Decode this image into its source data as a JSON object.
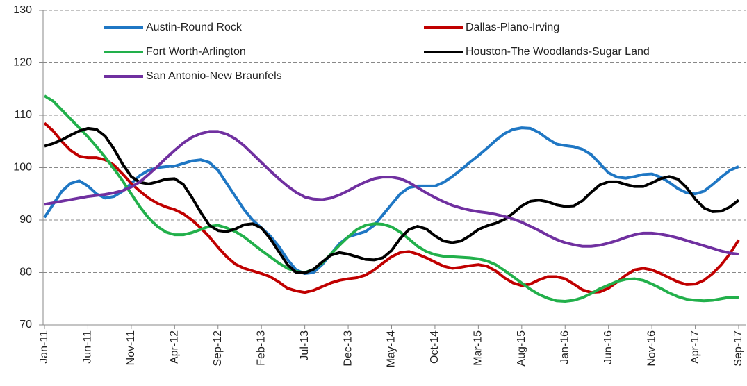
{
  "chart_data": {
    "type": "line",
    "categories": [
      "Jan-11",
      null,
      null,
      null,
      null,
      "Jun-11",
      null,
      null,
      null,
      null,
      "Nov-11",
      null,
      null,
      null,
      null,
      "Apr-12",
      null,
      null,
      null,
      null,
      "Sep-12",
      null,
      null,
      null,
      null,
      "Feb-13",
      null,
      null,
      null,
      null,
      "Jul-13",
      null,
      null,
      null,
      null,
      "Dec-13",
      null,
      null,
      null,
      null,
      "May-14",
      null,
      null,
      null,
      null,
      "Oct-14",
      null,
      null,
      null,
      null,
      "Mar-15",
      null,
      null,
      null,
      null,
      "Aug-15",
      null,
      null,
      null,
      null,
      "Jan-16",
      null,
      null,
      null,
      null,
      "Jun-16",
      null,
      null,
      null,
      null,
      "Nov-16",
      null,
      null,
      null,
      null,
      "Apr-17",
      null,
      null,
      null,
      null,
      "Sep-17"
    ],
    "series": [
      {
        "name": "Austin-Round Rock",
        "color": "#1f77c4",
        "values": [
          90.5,
          93,
          95.5,
          97,
          97.5,
          96.5,
          95,
          94.2,
          94.5,
          95.5,
          97,
          98.5,
          99.5,
          100,
          100.2,
          100.3,
          100.8,
          101.3,
          101.5,
          101,
          99.5,
          97,
          94.5,
          92,
          90,
          88.5,
          87,
          85,
          82.5,
          80.5,
          79.8,
          80,
          81.5,
          83.5,
          85.5,
          86.8,
          87.3,
          87.8,
          89,
          91,
          93,
          95,
          96.2,
          96.5,
          96.5,
          96.5,
          97.2,
          98.3,
          99.6,
          101,
          102.3,
          103.7,
          105.2,
          106.5,
          107.3,
          107.6,
          107.5,
          106.7,
          105.5,
          104.5,
          104.2,
          104,
          103.5,
          102.5,
          100.8,
          99,
          98.2,
          98,
          98.3,
          98.7,
          98.8,
          98.2,
          97.2,
          96,
          95.2,
          95,
          95.5,
          96.8,
          98.2,
          99.5,
          100.2
        ]
      },
      {
        "name": "Dallas-Plano-Irving",
        "color": "#c00000",
        "values": [
          108.5,
          107,
          105,
          103.3,
          102.2,
          101.9,
          101.9,
          101.5,
          100.5,
          98.8,
          97,
          95.5,
          94.2,
          93.2,
          92.5,
          92,
          91.2,
          90,
          88.5,
          86.8,
          84.8,
          83,
          81.6,
          80.8,
          80.3,
          79.8,
          79.2,
          78.2,
          77,
          76.5,
          76.2,
          76.6,
          77.3,
          78,
          78.5,
          78.8,
          79,
          79.5,
          80.5,
          81.8,
          83,
          83.8,
          84,
          83.5,
          82.8,
          82,
          81.2,
          80.8,
          81,
          81.3,
          81.5,
          81.2,
          80.3,
          79,
          78,
          77.5,
          77.8,
          78.6,
          79.2,
          79.2,
          78.8,
          77.8,
          76.7,
          76.2,
          76.3,
          77,
          78.2,
          79.5,
          80.5,
          80.8,
          80.5,
          79.8,
          79,
          78.2,
          77.7,
          77.8,
          78.5,
          79.8,
          81.5,
          83.6,
          86.2
        ]
      },
      {
        "name": "Fort Worth-Arlington",
        "color": "#22b04b",
        "values": [
          113.7,
          112.7,
          111,
          109.3,
          107.6,
          105.9,
          104,
          102,
          99.8,
          97.5,
          95,
          92.5,
          90.4,
          88.8,
          87.7,
          87.2,
          87.2,
          87.6,
          88.2,
          88.8,
          89,
          88.5,
          87.8,
          86.8,
          85.5,
          84.2,
          83,
          81.8,
          80.8,
          80.2,
          80,
          80.6,
          81.8,
          83.5,
          85.2,
          86.8,
          88.2,
          89,
          89.3,
          89.2,
          88.7,
          87.7,
          86.4,
          85,
          84,
          83.4,
          83.1,
          83,
          82.9,
          82.8,
          82.6,
          82.2,
          81.5,
          80.4,
          79.2,
          78,
          76.8,
          75.8,
          75.1,
          74.6,
          74.5,
          74.7,
          75.2,
          76,
          76.9,
          77.6,
          78.3,
          78.7,
          78.8,
          78.5,
          77.8,
          77,
          76.1,
          75.4,
          74.9,
          74.7,
          74.6,
          74.7,
          75,
          75.3,
          75.2
        ]
      },
      {
        "name": "Houston-The Woodlands-Sugar Land",
        "color": "#000000",
        "values": [
          104.1,
          104.6,
          105.3,
          106.2,
          107,
          107.5,
          107.3,
          106,
          103.6,
          100.7,
          98.3,
          97.2,
          96.9,
          97.3,
          97.8,
          97.9,
          96.8,
          94.3,
          91.5,
          89,
          88,
          87.8,
          88.3,
          89.1,
          89.3,
          88.5,
          86.5,
          84,
          81.5,
          80,
          79.9,
          80.6,
          82,
          83.3,
          83.8,
          83.5,
          83,
          82.5,
          82.4,
          82.8,
          84.2,
          86.5,
          88.2,
          88.8,
          88.3,
          87,
          86,
          85.7,
          86,
          87,
          88.2,
          88.9,
          89.4,
          90.1,
          91.3,
          92.7,
          93.6,
          93.8,
          93.5,
          92.9,
          92.6,
          92.7,
          93.7,
          95.3,
          96.7,
          97.3,
          97.3,
          96.8,
          96.4,
          96.4,
          97.1,
          97.9,
          98.3,
          97.8,
          96.2,
          94,
          92.3,
          91.6,
          91.7,
          92.5,
          93.8
        ]
      },
      {
        "name": "San Antonio-New Braunfels",
        "color": "#7030a0",
        "values": [
          93,
          93.3,
          93.6,
          93.9,
          94.2,
          94.5,
          94.7,
          94.9,
          95.2,
          95.6,
          96.3,
          97.3,
          98.7,
          100.2,
          101.8,
          103.3,
          104.7,
          105.8,
          106.5,
          106.9,
          106.9,
          106.4,
          105.5,
          104.2,
          102.6,
          101,
          99.4,
          97.9,
          96.5,
          95.3,
          94.4,
          94,
          93.9,
          94.2,
          94.8,
          95.6,
          96.5,
          97.3,
          97.9,
          98.2,
          98.2,
          97.9,
          97.2,
          96.2,
          95.2,
          94.3,
          93.5,
          92.8,
          92.3,
          91.9,
          91.6,
          91.4,
          91.1,
          90.7,
          90.2,
          89.6,
          88.8,
          88,
          87.1,
          86.3,
          85.7,
          85.3,
          85,
          85,
          85.2,
          85.6,
          86.1,
          86.7,
          87.2,
          87.5,
          87.5,
          87.3,
          87,
          86.6,
          86.1,
          85.6,
          85.1,
          84.6,
          84.1,
          83.7,
          83.5
        ]
      }
    ],
    "ylim": [
      70,
      130
    ],
    "yticks": [
      70,
      80,
      90,
      100,
      110,
      120,
      130
    ],
    "grid": true
  }
}
